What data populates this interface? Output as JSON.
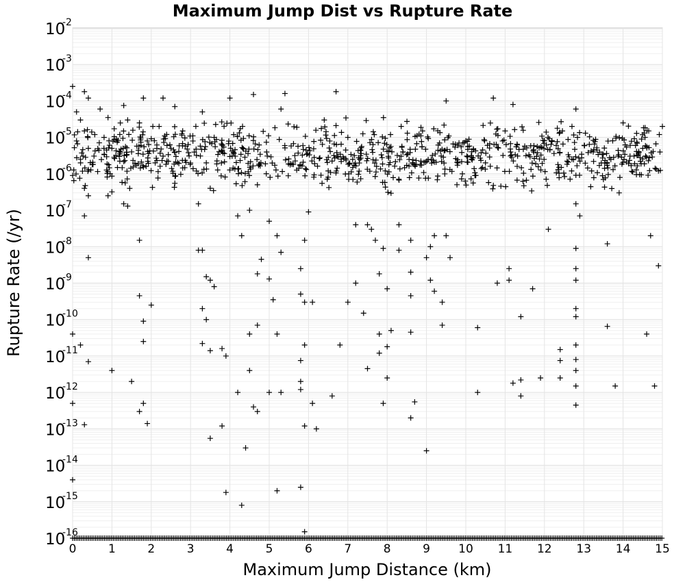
{
  "chart_data": {
    "type": "scatter",
    "title": "Maximum Jump Dist vs Rupture Rate",
    "xlabel": "Maximum Jump Distance (km)",
    "ylabel": "Rupture Rate (/yr)",
    "xlim": [
      0,
      15
    ],
    "ylim_log10": [
      -16,
      -2
    ],
    "y_scale": "log",
    "grid": true,
    "marker": "plus",
    "marker_color": "#000000",
    "x_ticks": [
      "0",
      "1",
      "2",
      "3",
      "4",
      "5",
      "6",
      "7",
      "8",
      "9",
      "10",
      "11",
      "12",
      "13",
      "14",
      "15"
    ],
    "y_ticks": [
      {
        "base": "10",
        "exp": "-2"
      },
      {
        "base": "10",
        "exp": "-3"
      },
      {
        "base": "10",
        "exp": "-4"
      },
      {
        "base": "10",
        "exp": "-5"
      },
      {
        "base": "10",
        "exp": "-6"
      },
      {
        "base": "10",
        "exp": "-7"
      },
      {
        "base": "10",
        "exp": "-8"
      },
      {
        "base": "10",
        "exp": "-9"
      },
      {
        "base": "10",
        "exp": "-10"
      },
      {
        "base": "10",
        "exp": "-11"
      },
      {
        "base": "10",
        "exp": "-12"
      },
      {
        "base": "10",
        "exp": "-13"
      },
      {
        "base": "10",
        "exp": "-14"
      },
      {
        "base": "10",
        "exp": "-15"
      },
      {
        "base": "10",
        "exp": "-16"
      }
    ],
    "points": [
      {
        "x": 0.0,
        "y": 0.00025
      },
      {
        "x": 0.3,
        "y": 0.00018
      },
      {
        "x": 0.4,
        "y": 0.00012
      },
      {
        "x": 0.1,
        "y": 5e-05
      },
      {
        "x": 0.2,
        "y": 3e-05
      },
      {
        "x": 0.3,
        "y": 1.5e-05
      },
      {
        "x": 0.1,
        "y": 8e-06
      },
      {
        "x": 0.4,
        "y": 5e-06
      },
      {
        "x": 0.2,
        "y": 2.5e-06
      },
      {
        "x": 0.5,
        "y": 1.8e-06
      },
      {
        "x": 0.0,
        "y": 9e-07
      },
      {
        "x": 0.3,
        "y": 4e-07
      },
      {
        "x": 0.4,
        "y": 2.5e-07
      },
      {
        "x": 0.3,
        "y": 7e-08
      },
      {
        "x": 0.4,
        "y": 5e-09
      },
      {
        "x": 0.0,
        "y": 4e-11
      },
      {
        "x": 0.2,
        "y": 2e-11
      },
      {
        "x": 0.4,
        "y": 7e-12
      },
      {
        "x": 0.0,
        "y": 5e-13
      },
      {
        "x": 0.3,
        "y": 1.3e-13
      },
      {
        "x": 0.0,
        "y": 4e-15
      },
      {
        "x": 0.7,
        "y": 6e-05
      },
      {
        "x": 0.9,
        "y": 3.5e-05
      },
      {
        "x": 0.8,
        "y": 1e-05
      },
      {
        "x": 1.0,
        "y": 5e-06
      },
      {
        "x": 0.9,
        "y": 2.5e-07
      },
      {
        "x": 1.0,
        "y": 3.2e-07
      },
      {
        "x": 1.0,
        "y": 4e-12
      },
      {
        "x": 1.3,
        "y": 7.5e-05
      },
      {
        "x": 1.4,
        "y": 3e-05
      },
      {
        "x": 1.2,
        "y": 1.2e-05
      },
      {
        "x": 1.5,
        "y": 4e-06
      },
      {
        "x": 1.3,
        "y": 1.5e-07
      },
      {
        "x": 1.4,
        "y": 1.3e-07
      },
      {
        "x": 1.5,
        "y": 2e-12
      },
      {
        "x": 1.8,
        "y": 0.00012
      },
      {
        "x": 1.7,
        "y": 2.5e-05
      },
      {
        "x": 1.9,
        "y": 8e-06
      },
      {
        "x": 1.7,
        "y": 1.5e-08
      },
      {
        "x": 1.7,
        "y": 4.5e-10
      },
      {
        "x": 1.8,
        "y": 9e-11
      },
      {
        "x": 1.8,
        "y": 2.5e-11
      },
      {
        "x": 1.8,
        "y": 5e-13
      },
      {
        "x": 1.7,
        "y": 3e-13
      },
      {
        "x": 1.9,
        "y": 1.4e-13
      },
      {
        "x": 2.0,
        "y": 2.5e-10
      },
      {
        "x": 2.3,
        "y": 0.00012
      },
      {
        "x": 2.2,
        "y": 2e-05
      },
      {
        "x": 2.4,
        "y": 6e-06
      },
      {
        "x": 2.6,
        "y": 7e-05
      },
      {
        "x": 2.5,
        "y": 5e-06
      },
      {
        "x": 2.6,
        "y": 5.5e-07
      },
      {
        "x": 3.3,
        "y": 8e-09
      },
      {
        "x": 3.2,
        "y": 8e-09
      },
      {
        "x": 3.4,
        "y": 1.5e-09
      },
      {
        "x": 3.5,
        "y": 1.2e-09
      },
      {
        "x": 3.6,
        "y": 8e-10
      },
      {
        "x": 3.3,
        "y": 2e-10
      },
      {
        "x": 3.4,
        "y": 1e-10
      },
      {
        "x": 3.3,
        "y": 2.2e-11
      },
      {
        "x": 3.5,
        "y": 1.4e-11
      },
      {
        "x": 3.5,
        "y": 5.5e-14
      },
      {
        "x": 3.2,
        "y": 1.5e-07
      },
      {
        "x": 3.5,
        "y": 4e-07
      },
      {
        "x": 3.4,
        "y": 2e-06
      },
      {
        "x": 3.6,
        "y": 1e-05
      },
      {
        "x": 3.3,
        "y": 5e-05
      },
      {
        "x": 3.8,
        "y": 1.6e-11
      },
      {
        "x": 3.9,
        "y": 1e-11
      },
      {
        "x": 3.8,
        "y": 1.2e-13
      },
      {
        "x": 3.9,
        "y": 1.8e-15
      },
      {
        "x": 4.0,
        "y": 0.00012
      },
      {
        "x": 4.0,
        "y": 3e-06
      },
      {
        "x": 4.2,
        "y": 7e-08
      },
      {
        "x": 4.3,
        "y": 2e-08
      },
      {
        "x": 4.2,
        "y": 1e-12
      },
      {
        "x": 4.4,
        "y": 3e-14
      },
      {
        "x": 4.3,
        "y": 8e-16
      },
      {
        "x": 4.5,
        "y": 4e-12
      },
      {
        "x": 4.6,
        "y": 4e-13
      },
      {
        "x": 4.7,
        "y": 3e-13
      },
      {
        "x": 4.5,
        "y": 4e-11
      },
      {
        "x": 4.7,
        "y": 7e-11
      },
      {
        "x": 4.8,
        "y": 4.5e-09
      },
      {
        "x": 4.7,
        "y": 1.8e-09
      },
      {
        "x": 4.6,
        "y": 0.00015
      },
      {
        "x": 4.5,
        "y": 1e-07
      },
      {
        "x": 4.7,
        "y": 5e-07
      },
      {
        "x": 5.0,
        "y": 1.3e-09
      },
      {
        "x": 5.2,
        "y": 2e-08
      },
      {
        "x": 5.3,
        "y": 7e-09
      },
      {
        "x": 5.1,
        "y": 3.5e-10
      },
      {
        "x": 5.2,
        "y": 4e-11
      },
      {
        "x": 5.3,
        "y": 1e-12
      },
      {
        "x": 5.2,
        "y": 2e-15
      },
      {
        "x": 5.0,
        "y": 1e-12
      },
      {
        "x": 5.4,
        "y": 0.00016
      },
      {
        "x": 5.0,
        "y": 5e-08
      },
      {
        "x": 5.3,
        "y": 6e-05
      },
      {
        "x": 5.8,
        "y": 7.5e-12
      },
      {
        "x": 5.9,
        "y": 1.5e-16
      },
      {
        "x": 5.8,
        "y": 2.5e-15
      },
      {
        "x": 5.9,
        "y": 1.2e-13
      },
      {
        "x": 5.8,
        "y": 1.2e-12
      },
      {
        "x": 5.8,
        "y": 2e-12
      },
      {
        "x": 5.9,
        "y": 2e-11
      },
      {
        "x": 5.8,
        "y": 5e-10
      },
      {
        "x": 5.9,
        "y": 3e-10
      },
      {
        "x": 5.8,
        "y": 2.5e-09
      },
      {
        "x": 5.9,
        "y": 1.5e-08
      },
      {
        "x": 6.0,
        "y": 9e-08
      },
      {
        "x": 6.1,
        "y": 5e-13
      },
      {
        "x": 6.2,
        "y": 1e-13
      },
      {
        "x": 6.1,
        "y": 3e-10
      },
      {
        "x": 6.6,
        "y": 8e-13
      },
      {
        "x": 6.8,
        "y": 2e-11
      },
      {
        "x": 6.7,
        "y": 0.00018
      },
      {
        "x": 7.0,
        "y": 3e-10
      },
      {
        "x": 7.2,
        "y": 1e-09
      },
      {
        "x": 7.2,
        "y": 4e-08
      },
      {
        "x": 7.5,
        "y": 4e-08
      },
      {
        "x": 7.6,
        "y": 3e-08
      },
      {
        "x": 7.4,
        "y": 1.5e-10
      },
      {
        "x": 7.5,
        "y": 4.5e-12
      },
      {
        "x": 7.7,
        "y": 1.5e-08
      },
      {
        "x": 7.9,
        "y": 9e-09
      },
      {
        "x": 7.8,
        "y": 1.8e-09
      },
      {
        "x": 8.0,
        "y": 7e-10
      },
      {
        "x": 7.8,
        "y": 4e-11
      },
      {
        "x": 7.8,
        "y": 1.2e-11
      },
      {
        "x": 8.0,
        "y": 1.8e-11
      },
      {
        "x": 8.0,
        "y": 2.5e-12
      },
      {
        "x": 7.9,
        "y": 5e-13
      },
      {
        "x": 8.1,
        "y": 5e-11
      },
      {
        "x": 8.3,
        "y": 4e-08
      },
      {
        "x": 8.3,
        "y": 8e-09
      },
      {
        "x": 8.6,
        "y": 1.5e-08
      },
      {
        "x": 8.6,
        "y": 2e-09
      },
      {
        "x": 8.6,
        "y": 4.5e-10
      },
      {
        "x": 8.6,
        "y": 4.5e-11
      },
      {
        "x": 8.7,
        "y": 5.5e-13
      },
      {
        "x": 8.6,
        "y": 2e-13
      },
      {
        "x": 9.0,
        "y": 5e-09
      },
      {
        "x": 9.1,
        "y": 1e-08
      },
      {
        "x": 9.1,
        "y": 1.2e-09
      },
      {
        "x": 9.2,
        "y": 2e-08
      },
      {
        "x": 9.2,
        "y": 6e-10
      },
      {
        "x": 9.4,
        "y": 3e-10
      },
      {
        "x": 9.4,
        "y": 7e-11
      },
      {
        "x": 9.0,
        "y": 2.5e-14
      },
      {
        "x": 9.5,
        "y": 2e-08
      },
      {
        "x": 9.6,
        "y": 5e-09
      },
      {
        "x": 9.5,
        "y": 0.0001
      },
      {
        "x": 10.3,
        "y": 6e-11
      },
      {
        "x": 10.3,
        "y": 1e-12
      },
      {
        "x": 10.8,
        "y": 1e-09
      },
      {
        "x": 10.7,
        "y": 0.00012
      },
      {
        "x": 11.1,
        "y": 2.5e-09
      },
      {
        "x": 11.1,
        "y": 1.2e-09
      },
      {
        "x": 11.2,
        "y": 8e-05
      },
      {
        "x": 11.4,
        "y": 1.2e-10
      },
      {
        "x": 11.2,
        "y": 1.8e-12
      },
      {
        "x": 11.4,
        "y": 2.2e-12
      },
      {
        "x": 11.4,
        "y": 8e-13
      },
      {
        "x": 11.7,
        "y": 7e-10
      },
      {
        "x": 11.9,
        "y": 2.5e-12
      },
      {
        "x": 12.1,
        "y": 3e-08
      },
      {
        "x": 12.4,
        "y": 1.5e-11
      },
      {
        "x": 12.4,
        "y": 7.5e-12
      },
      {
        "x": 12.4,
        "y": 2.5e-12
      },
      {
        "x": 12.8,
        "y": 9e-09
      },
      {
        "x": 12.8,
        "y": 2.5e-09
      },
      {
        "x": 12.8,
        "y": 1.2e-09
      },
      {
        "x": 12.8,
        "y": 2e-10
      },
      {
        "x": 12.8,
        "y": 1.2e-10
      },
      {
        "x": 12.8,
        "y": 2e-11
      },
      {
        "x": 12.8,
        "y": 8e-12
      },
      {
        "x": 12.8,
        "y": 4e-12
      },
      {
        "x": 12.8,
        "y": 1.5e-12
      },
      {
        "x": 12.8,
        "y": 4.5e-13
      },
      {
        "x": 12.9,
        "y": 7e-08
      },
      {
        "x": 12.8,
        "y": 1.5e-07
      },
      {
        "x": 12.8,
        "y": 6e-05
      },
      {
        "x": 12.7,
        "y": 2e-05
      },
      {
        "x": 13.6,
        "y": 1.2e-08
      },
      {
        "x": 13.6,
        "y": 6.5e-11
      },
      {
        "x": 13.8,
        "y": 1.5e-12
      },
      {
        "x": 13.9,
        "y": 3e-07
      },
      {
        "x": 14.0,
        "y": 2.5e-05
      },
      {
        "x": 14.7,
        "y": 2e-08
      },
      {
        "x": 14.6,
        "y": 4e-11
      },
      {
        "x": 14.8,
        "y": 1.5e-12
      },
      {
        "x": 14.9,
        "y": 3e-09
      },
      {
        "x": 14.9,
        "y": 1.2e-06
      },
      {
        "x": 15.0,
        "y": 2e-05
      },
      {
        "x": 14.5,
        "y": 5e-06
      },
      {
        "x": 13.5,
        "y": 7e-07
      },
      {
        "x": 10.0,
        "y": 8e-06
      },
      {
        "x": 10.5,
        "y": 2e-06
      },
      {
        "x": 11.0,
        "y": 1.5e-05
      },
      {
        "x": 11.8,
        "y": 3e-06
      },
      {
        "x": 12.3,
        "y": 6e-06
      },
      {
        "x": 13.2,
        "y": 1.2e-06
      },
      {
        "x": 7.0,
        "y": 1e-05
      },
      {
        "x": 7.3,
        "y": 2.5e-06
      },
      {
        "x": 6.4,
        "y": 3e-05
      },
      {
        "x": 6.5,
        "y": 1.2e-06
      },
      {
        "x": 8.4,
        "y": 4e-06
      },
      {
        "x": 8.9,
        "y": 1.5e-05
      },
      {
        "x": 9.8,
        "y": 2e-06
      },
      {
        "x": 2.8,
        "y": 1.5e-05
      },
      {
        "x": 2.1,
        "y": 2e-06
      }
    ],
    "clusters": [
      {
        "x_min": 0.0,
        "x_max": 15.0,
        "log_y_min": -6.7,
        "log_y_max": -4.3,
        "count": 900
      }
    ],
    "floor_value": 1e-16
  }
}
